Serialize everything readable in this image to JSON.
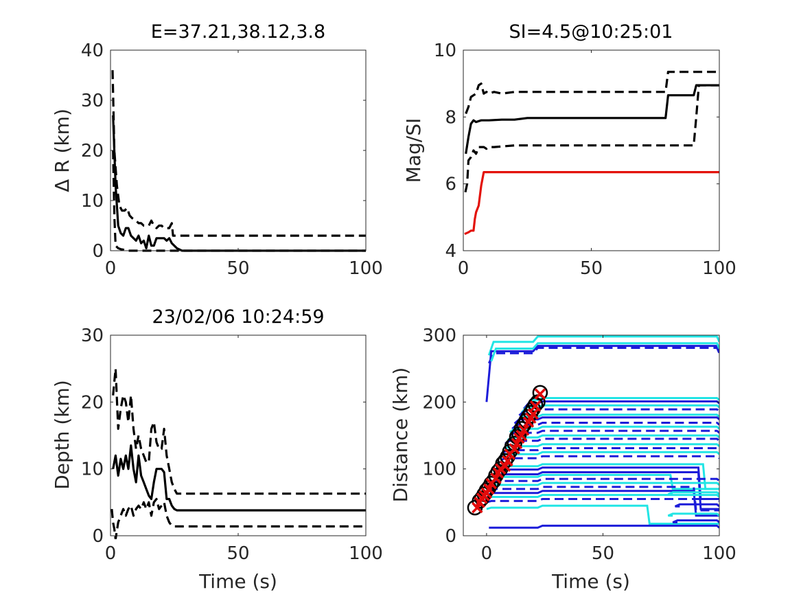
{
  "chart_data": [
    {
      "type": "line",
      "title": "E=37.21,38.12,3.8",
      "xlabel": "",
      "ylabel": "Δ R (km)",
      "xlim": [
        0,
        100
      ],
      "ylim": [
        0,
        40
      ],
      "xticks": [
        "0",
        "50",
        "100"
      ],
      "yticks": [
        "0",
        "10",
        "20",
        "30",
        "40"
      ],
      "grid": false,
      "series": [
        {
          "style": "solid",
          "color": "#000000",
          "x": [
            1,
            2,
            3,
            4,
            5,
            6,
            7,
            8,
            9,
            10,
            11,
            12,
            13,
            14,
            15,
            16,
            17,
            18,
            19,
            20,
            21,
            22,
            23,
            24,
            26,
            28,
            100
          ],
          "y": [
            27,
            13,
            5,
            3.5,
            3,
            4.5,
            4.5,
            3,
            2.5,
            2,
            3,
            1.5,
            2,
            0.5,
            3,
            1,
            1,
            2.5,
            2.5,
            2.5,
            2.5,
            2,
            2.5,
            1.5,
            0.5,
            0,
            0
          ]
        },
        {
          "style": "dashed",
          "color": "#000000",
          "x": [
            0.8,
            1.5,
            2.5,
            3.5,
            4.5,
            5.5,
            6.5,
            7.5,
            8.5,
            10,
            11,
            12,
            13,
            14,
            15,
            16,
            17,
            18,
            19,
            20,
            21,
            22,
            23,
            24,
            24.5,
            100
          ],
          "y": [
            36,
            20,
            13,
            9,
            8,
            8,
            8.5,
            7,
            6.5,
            6,
            5.5,
            5.5,
            5,
            5,
            5,
            6,
            5,
            4.5,
            5,
            5,
            4.5,
            4.5,
            4.5,
            5.5,
            3,
            3
          ]
        },
        {
          "style": "dashed",
          "color": "#000000",
          "x": [
            1,
            1.5,
            2,
            3,
            4,
            5,
            6,
            8,
            10,
            100
          ],
          "y": [
            20,
            7,
            1,
            0.5,
            0.3,
            0.2,
            0,
            0,
            0,
            0
          ]
        }
      ]
    },
    {
      "type": "line",
      "title": "SI=4.5@10:25:01",
      "xlabel": "",
      "ylabel": "Mag/SI",
      "xlim": [
        0,
        100
      ],
      "ylim": [
        4,
        10
      ],
      "xticks": [
        "0",
        "50",
        "100"
      ],
      "yticks": [
        "4",
        "6",
        "8",
        "10"
      ],
      "grid": false,
      "series": [
        {
          "style": "solid",
          "color": "#000000",
          "x": [
            1,
            2,
            3,
            4,
            5,
            7,
            10,
            15,
            20,
            25,
            79,
            80,
            90,
            91,
            92,
            100
          ],
          "y": [
            6.9,
            7.4,
            7.8,
            7.9,
            7.85,
            7.9,
            7.9,
            7.92,
            7.92,
            7.97,
            7.97,
            8.65,
            8.65,
            8.95,
            8.95,
            8.95
          ]
        },
        {
          "style": "dashed",
          "color": "#000000",
          "x": [
            1,
            2,
            3,
            4,
            5,
            6,
            7,
            8,
            9,
            10,
            12,
            15,
            20,
            25,
            79,
            80,
            85,
            100
          ],
          "y": [
            8.1,
            8.3,
            8.6,
            8.65,
            8.7,
            8.95,
            9.0,
            8.7,
            8.75,
            8.7,
            8.75,
            8.7,
            8.75,
            8.75,
            8.75,
            9.35,
            9.35,
            9.35
          ]
        },
        {
          "style": "dashed",
          "color": "#000000",
          "x": [
            0.8,
            1.5,
            2,
            3,
            4,
            5,
            6,
            7,
            8,
            9,
            10,
            12,
            15,
            20,
            25,
            79,
            80,
            90,
            91,
            92,
            100
          ],
          "y": [
            5.75,
            6.0,
            6.7,
            6.8,
            7.0,
            6.9,
            7.1,
            7.1,
            7.1,
            7.05,
            7.1,
            7.1,
            7.12,
            7.15,
            7.15,
            7.15,
            7.15,
            7.15,
            8.0,
            8.95,
            8.95
          ]
        },
        {
          "style": "solid",
          "color": "#e3120b",
          "x": [
            0.5,
            2,
            3,
            4,
            4.5,
            5,
            6,
            7,
            8,
            100
          ],
          "y": [
            4.5,
            4.55,
            4.6,
            4.6,
            4.95,
            5.15,
            5.35,
            5.95,
            6.35,
            6.35
          ]
        }
      ]
    },
    {
      "type": "line",
      "title": "23/02/06 10:24:59",
      "xlabel": "Time (s)",
      "ylabel": "Depth (km)",
      "xlim": [
        0,
        100
      ],
      "ylim": [
        0,
        30
      ],
      "xticks": [
        "0",
        "50",
        "100"
      ],
      "yticks": [
        "0",
        "10",
        "20",
        "30"
      ],
      "grid": false,
      "series": [
        {
          "style": "solid",
          "color": "#000000",
          "x": [
            1,
            2,
            3,
            4,
            5,
            6,
            7,
            8,
            9,
            10,
            11,
            12,
            13,
            14,
            15,
            16,
            17,
            18,
            19,
            20,
            21,
            22,
            23,
            24,
            25,
            26,
            100
          ],
          "y": [
            10,
            12,
            9,
            11.5,
            10,
            12,
            10,
            13.5,
            10,
            8,
            12,
            9,
            8,
            7,
            6,
            5.5,
            8,
            10,
            10,
            10,
            9.5,
            5.5,
            5.5,
            4.5,
            4,
            3.8,
            3.8
          ]
        },
        {
          "style": "dashed",
          "color": "#000000",
          "x": [
            1,
            2,
            3,
            4,
            5,
            6,
            7,
            8,
            9,
            10,
            11,
            12,
            13,
            14,
            15,
            16,
            17,
            18,
            19,
            20,
            21,
            22,
            23,
            24,
            25,
            26,
            100
          ],
          "y": [
            21,
            25,
            16,
            19,
            21,
            20,
            17,
            21,
            16,
            13,
            15,
            13,
            12,
            11,
            11,
            16,
            17,
            14,
            13,
            13,
            16,
            12,
            10,
            8,
            7,
            6.3,
            6.3
          ]
        },
        {
          "style": "dashed",
          "color": "#000000",
          "x": [
            0.5,
            1,
            1.5,
            2,
            3,
            4,
            5,
            6,
            7,
            8,
            9,
            10,
            11,
            12,
            13,
            14,
            15,
            16,
            17,
            18,
            19,
            20,
            21,
            22,
            23,
            24,
            25,
            100
          ],
          "y": [
            4,
            2,
            1,
            -0.5,
            2,
            3,
            4,
            3,
            4,
            4.5,
            3,
            4,
            4.5,
            4,
            5,
            4,
            5,
            3,
            5,
            5.5,
            4,
            4.5,
            5,
            3,
            2,
            1.5,
            1.4,
            1.4
          ]
        }
      ]
    },
    {
      "type": "line",
      "title": "",
      "xlabel": "Time (s)",
      "ylabel": "Distance (km)",
      "xlim": [
        -10,
        100
      ],
      "ylim": [
        0,
        300
      ],
      "xticks": [
        "0",
        "50",
        "100"
      ],
      "yticks": [
        "0",
        "100",
        "200",
        "300"
      ],
      "grid": false,
      "colors": {
        "cyan": "#22e5e5",
        "blue": "#1c1cd9",
        "marker_fill": "#e30b0b",
        "marker_outline": "#000000"
      },
      "traces": [
        {
          "color": "cyan",
          "style": "solid",
          "start_x": 1,
          "start_y": 270,
          "level": 290,
          "step_x": 20,
          "end_x": 100,
          "end_y": 290
        },
        {
          "color": "blue",
          "style": "solid",
          "start_x": 0,
          "start_y": 200,
          "level": 276,
          "step_x": 20,
          "end_x": 100,
          "end_y": 276
        },
        {
          "color": "blue",
          "style": "dashed",
          "start_x": 1,
          "start_y": 258,
          "level": 273,
          "step_x": 20,
          "end_x": 100,
          "end_y": 273
        },
        {
          "color": "cyan",
          "style": "solid",
          "start_x": 2,
          "start_y": 261,
          "level": 280,
          "step_x": 20,
          "end_x": 100,
          "end_y": 280
        },
        {
          "color": "cyan",
          "style": "solid",
          "start_x": 18,
          "start_y": 197,
          "level": 203,
          "step_x": 22,
          "end_x": 100,
          "end_y": 203
        },
        {
          "color": "blue",
          "style": "solid",
          "start_x": 16,
          "start_y": 190,
          "level": 198,
          "step_x": 22,
          "end_x": 100,
          "end_y": 198
        },
        {
          "color": "cyan",
          "style": "solid",
          "start_x": 15,
          "start_y": 184,
          "level": 192,
          "step_x": 22,
          "end_x": 100,
          "end_y": 192
        },
        {
          "color": "blue",
          "style": "dashed",
          "start_x": 14,
          "start_y": 180,
          "level": 186,
          "step_x": 22,
          "end_x": 100,
          "end_y": 186
        },
        {
          "color": "cyan",
          "style": "solid",
          "start_x": 13,
          "start_y": 170,
          "level": 178,
          "step_x": 22,
          "end_x": 100,
          "end_y": 178
        },
        {
          "color": "blue",
          "style": "solid",
          "start_x": 12,
          "start_y": 168,
          "level": 174,
          "step_x": 22,
          "end_x": 100,
          "end_y": 174
        },
        {
          "color": "blue",
          "style": "dashed",
          "start_x": 11,
          "start_y": 160,
          "level": 166,
          "step_x": 22,
          "end_x": 100,
          "end_y": 166
        },
        {
          "color": "cyan",
          "style": "solid",
          "start_x": 10,
          "start_y": 155,
          "level": 160,
          "step_x": 22,
          "end_x": 100,
          "end_y": 160
        },
        {
          "color": "blue",
          "style": "dashed",
          "start_x": 10,
          "start_y": 150,
          "level": 154,
          "step_x": 22,
          "end_x": 100,
          "end_y": 154
        },
        {
          "color": "cyan",
          "style": "solid",
          "start_x": 9,
          "start_y": 143,
          "level": 147,
          "step_x": 22,
          "end_x": 100,
          "end_y": 147
        },
        {
          "color": "blue",
          "style": "dashed",
          "start_x": 8,
          "start_y": 138,
          "level": 142,
          "step_x": 22,
          "end_x": 100,
          "end_y": 142
        },
        {
          "color": "cyan",
          "style": "solid",
          "start_x": 8,
          "start_y": 130,
          "level": 134,
          "step_x": 22,
          "end_x": 100,
          "end_y": 134
        },
        {
          "color": "blue",
          "style": "dashed",
          "start_x": 7,
          "start_y": 124,
          "level": 128,
          "step_x": 22,
          "end_x": 100,
          "end_y": 128
        },
        {
          "color": "cyan",
          "style": "solid",
          "start_x": 6,
          "start_y": 118,
          "level": 122,
          "step_x": 22,
          "end_x": 100,
          "end_y": 122
        },
        {
          "color": "blue",
          "style": "dashed",
          "start_x": 6,
          "start_y": 113,
          "level": 116,
          "step_x": 22,
          "end_x": 100,
          "end_y": 116
        },
        {
          "color": "cyan",
          "style": "solid",
          "start_x": 4,
          "start_y": 102,
          "level": 104,
          "step_x": 22,
          "end_x": 94,
          "end_y": 70
        },
        {
          "color": "blue",
          "style": "solid",
          "start_x": 4,
          "start_y": 96,
          "level": 99,
          "step_x": 22,
          "end_x": 92,
          "end_y": 55
        },
        {
          "color": "blue",
          "style": "solid",
          "start_x": 3,
          "start_y": 90,
          "level": 92,
          "step_x": 22,
          "end_x": 92,
          "end_y": 40
        },
        {
          "color": "cyan",
          "style": "solid",
          "start_x": 3,
          "start_y": 86,
          "level": 88,
          "step_x": 22,
          "end_x": 80,
          "end_y": 70
        },
        {
          "color": "blue",
          "style": "dashed",
          "start_x": 2,
          "start_y": 80,
          "level": 82,
          "step_x": 22,
          "end_x": 100,
          "end_y": 82
        },
        {
          "color": "cyan",
          "style": "solid",
          "start_x": 2,
          "start_y": 74,
          "level": 76,
          "step_x": 22,
          "end_x": 100,
          "end_y": 76
        },
        {
          "color": "blue",
          "style": "dashed",
          "start_x": 1,
          "start_y": 68,
          "level": 70,
          "step_x": 22,
          "end_x": 90,
          "end_y": 38
        },
        {
          "color": "blue",
          "style": "solid",
          "start_x": 1,
          "start_y": 62,
          "level": 64,
          "step_x": 22,
          "end_x": 90,
          "end_y": 30
        },
        {
          "color": "cyan",
          "style": "solid",
          "start_x": 0,
          "start_y": 56,
          "level": 58,
          "step_x": 22,
          "end_x": 100,
          "end_y": 58
        },
        {
          "color": "blue",
          "style": "dashed",
          "start_x": 0,
          "start_y": 50,
          "level": 52,
          "step_x": 22,
          "end_x": 100,
          "end_y": 52
        },
        {
          "color": "cyan",
          "style": "solid",
          "start_x": 0,
          "start_y": 40,
          "level": 42,
          "step_x": 22,
          "end_x": 70,
          "end_y": 18
        },
        {
          "color": "blue",
          "style": "solid",
          "start_x": 1,
          "start_y": 12,
          "level": 12,
          "step_x": 22,
          "end_x": 100,
          "end_y": 12
        },
        {
          "color": "blue",
          "style": "solid",
          "start_x": 81,
          "start_y": 44,
          "level": 44,
          "step_x": 81,
          "end_x": 100,
          "end_y": 44
        },
        {
          "color": "cyan",
          "style": "solid",
          "start_x": 78,
          "start_y": 62,
          "level": 62,
          "step_x": 78,
          "end_x": 100,
          "end_y": 62
        },
        {
          "color": "blue",
          "style": "solid",
          "start_x": 80,
          "start_y": 20,
          "level": 20,
          "step_x": 80,
          "end_x": 100,
          "end_y": 20
        },
        {
          "color": "cyan",
          "style": "solid",
          "start_x": 78,
          "start_y": 30,
          "level": 30,
          "step_x": 78,
          "end_x": 100,
          "end_y": 30
        }
      ],
      "markers": {
        "circles": {
          "x": [
            -5,
            -3,
            -2,
            -1,
            0,
            1,
            2,
            3,
            4,
            5,
            6,
            7,
            8,
            9,
            10,
            11,
            12,
            13,
            14,
            15,
            16,
            17,
            18,
            19,
            20,
            21,
            22,
            23
          ],
          "y": [
            42,
            52,
            56,
            62,
            68,
            72,
            78,
            82,
            90,
            96,
            100,
            108,
            112,
            118,
            126,
            134,
            138,
            148,
            152,
            160,
            166,
            172,
            178,
            184,
            190,
            196,
            200,
            214
          ]
        },
        "crosses": {
          "x": [
            -4,
            -3,
            -2,
            -1,
            0,
            1,
            2,
            4,
            5,
            6,
            8,
            9,
            10,
            12,
            13,
            14,
            15,
            16,
            18,
            19,
            20,
            21,
            23
          ],
          "y": [
            42,
            50,
            56,
            60,
            64,
            70,
            78,
            86,
            94,
            100,
            104,
            112,
            122,
            130,
            138,
            146,
            150,
            158,
            170,
            176,
            182,
            194,
            212
          ]
        }
      }
    }
  ]
}
